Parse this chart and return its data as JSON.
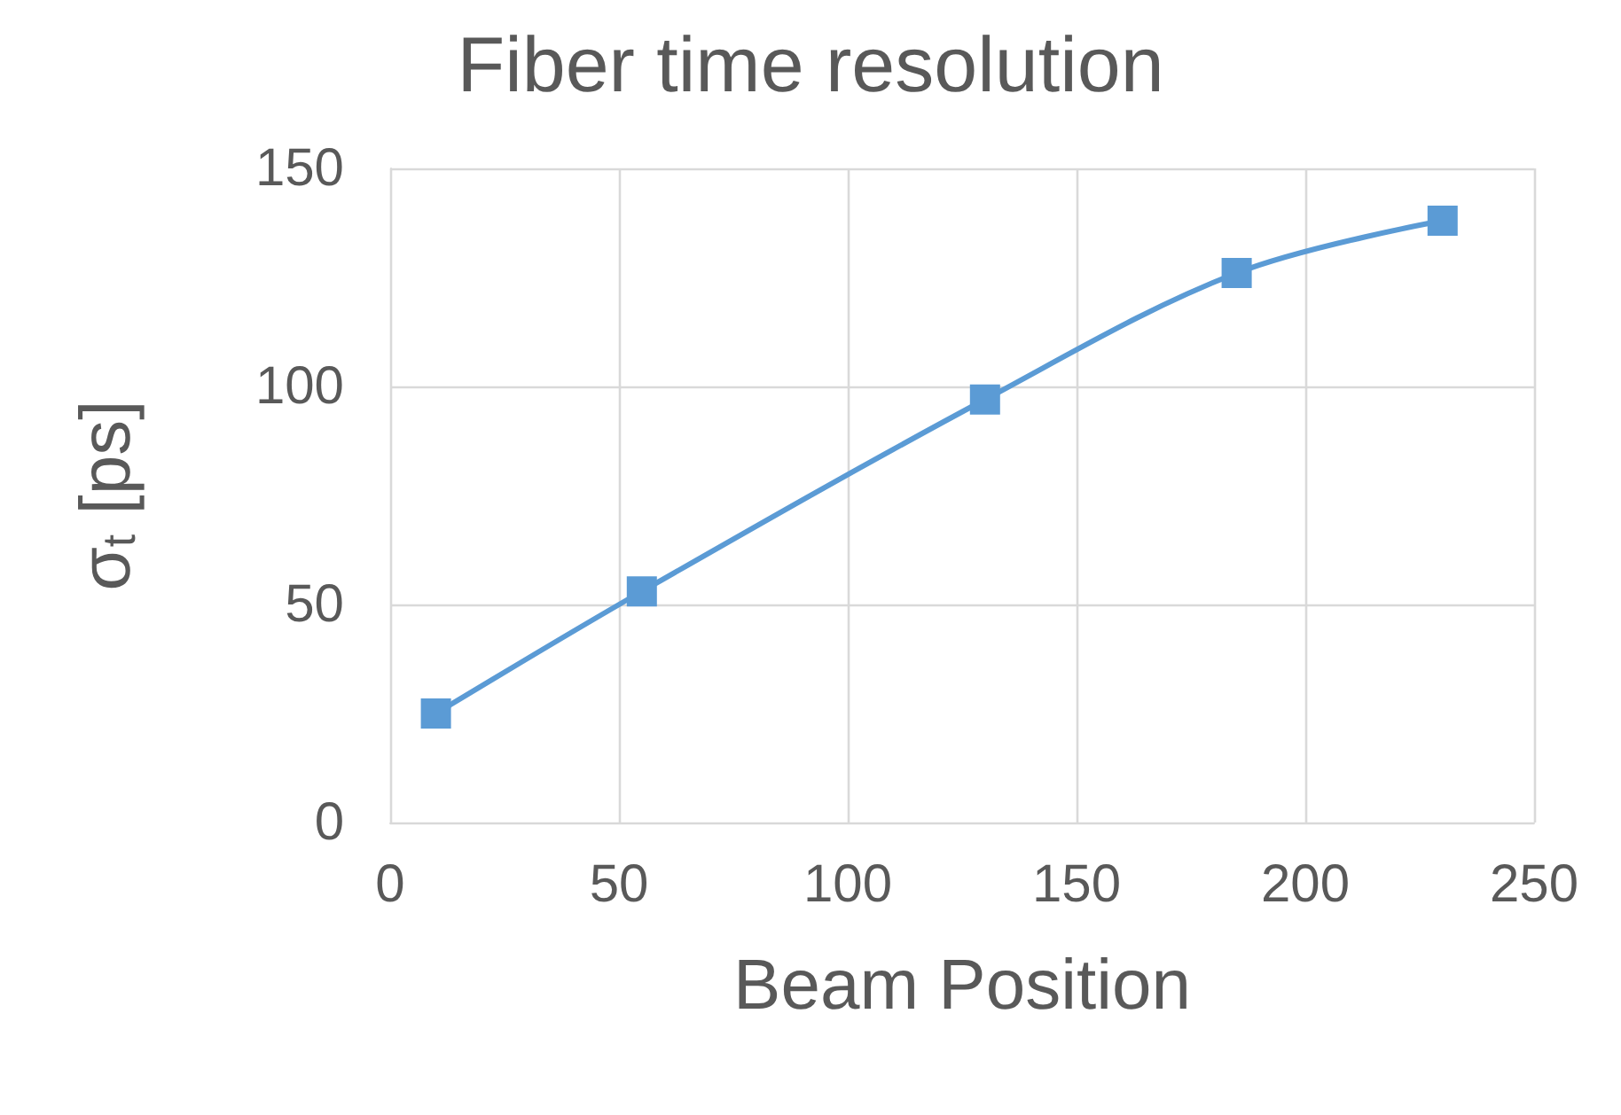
{
  "chart_data": {
    "type": "line",
    "title": "Fiber time resolution",
    "xlabel": "Beam Position",
    "ylabel": "σ$_{t}$ [ps]",
    "x": [
      10,
      55,
      130,
      185,
      230
    ],
    "series": [
      {
        "color": "#5b9bd5",
        "values": [
          25,
          53,
          97,
          126,
          138
        ]
      }
    ],
    "xlim": [
      0,
      250
    ],
    "xticks": [
      0,
      50,
      100,
      150,
      200,
      250
    ],
    "ylim": [
      0,
      150
    ],
    "yticks": [
      0,
      50,
      100,
      150
    ],
    "grid": true,
    "marker": "square",
    "line_style": "solid"
  }
}
